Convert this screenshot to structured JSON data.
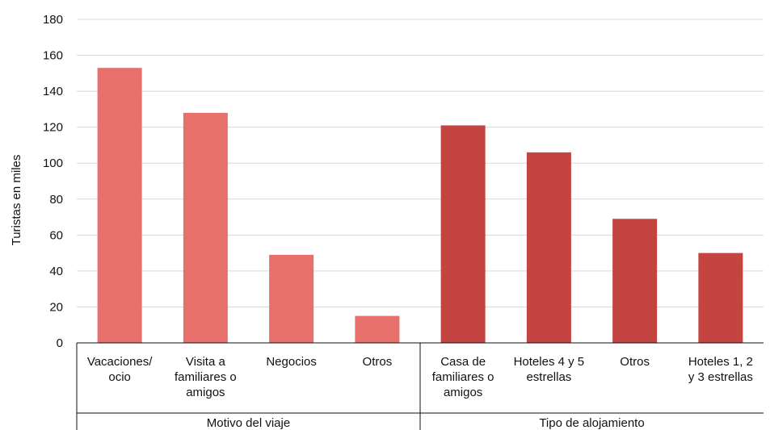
{
  "chart_data": {
    "type": "bar",
    "ylabel": "Turistas en miles",
    "ylim": [
      0,
      180
    ],
    "yticks": [
      0,
      20,
      40,
      60,
      80,
      100,
      120,
      140,
      160,
      180
    ],
    "grid": true,
    "groups": [
      {
        "name": "Motivo del viaje",
        "color": "#E8706C",
        "categories": [
          [
            "Vacaciones/",
            "ocio"
          ],
          [
            "Visita a",
            "familiares o",
            "amigos"
          ],
          [
            "Negocios"
          ],
          [
            "Otros"
          ]
        ],
        "values": [
          153,
          128,
          49,
          15
        ]
      },
      {
        "name": "Tipo de alojamiento",
        "color": "#C44442",
        "categories": [
          [
            "Casa de",
            "familiares o",
            "amigos"
          ],
          [
            "Hoteles 4 y 5",
            "estrellas"
          ],
          [
            "Otros"
          ],
          [
            "Hoteles 1, 2",
            "y 3 estrellas"
          ]
        ],
        "values": [
          121,
          106,
          69,
          50
        ]
      }
    ]
  }
}
